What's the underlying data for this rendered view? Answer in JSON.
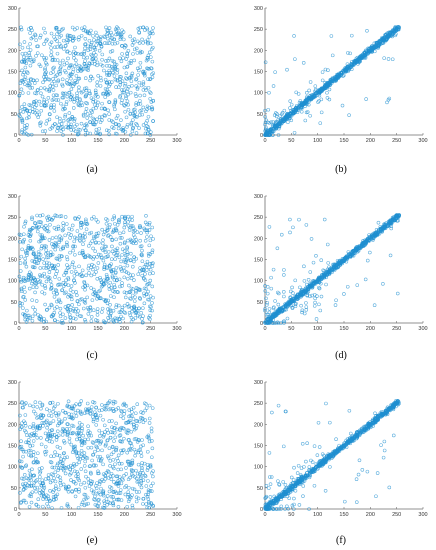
{
  "chart_data": [
    {
      "type": "scatter",
      "id": "a",
      "caption": "(a)",
      "pattern": "uniform",
      "xlim": [
        0,
        300
      ],
      "ylim": [
        0,
        300
      ],
      "x_ticks": [
        0,
        50,
        100,
        150,
        200,
        250,
        300
      ],
      "y_ticks": [
        0,
        50,
        100,
        150,
        200,
        250,
        300
      ],
      "x_range": [
        0,
        255
      ],
      "y_range": [
        0,
        255
      ],
      "n_points": 900,
      "seed": 11,
      "color": "#1f8fd0"
    },
    {
      "type": "scatter",
      "id": "b",
      "caption": "(b)",
      "pattern": "diagonal",
      "xlim": [
        0,
        300
      ],
      "ylim": [
        0,
        300
      ],
      "x_ticks": [
        0,
        50,
        100,
        150,
        200,
        250,
        300
      ],
      "y_ticks": [
        0,
        50,
        100,
        150,
        200,
        250,
        300
      ],
      "x_range": [
        0,
        255
      ],
      "y_range": [
        0,
        255
      ],
      "n_points": 900,
      "seed": 23,
      "color": "#1f8fd0"
    },
    {
      "type": "scatter",
      "id": "c",
      "caption": "(c)",
      "pattern": "uniform",
      "xlim": [
        0,
        300
      ],
      "ylim": [
        0,
        300
      ],
      "x_ticks": [
        0,
        50,
        100,
        150,
        200,
        250,
        300
      ],
      "y_ticks": [
        0,
        50,
        100,
        150,
        200,
        250,
        300
      ],
      "x_range": [
        0,
        255
      ],
      "y_range": [
        0,
        255
      ],
      "n_points": 900,
      "seed": 37,
      "color": "#1f8fd0"
    },
    {
      "type": "scatter",
      "id": "d",
      "caption": "(d)",
      "pattern": "diagonal",
      "xlim": [
        0,
        300
      ],
      "ylim": [
        0,
        300
      ],
      "x_ticks": [
        0,
        50,
        100,
        150,
        200,
        250,
        300
      ],
      "y_ticks": [
        0,
        50,
        100,
        150,
        200,
        250,
        300
      ],
      "x_range": [
        0,
        255
      ],
      "y_range": [
        0,
        255
      ],
      "n_points": 900,
      "seed": 41,
      "color": "#1f8fd0"
    },
    {
      "type": "scatter",
      "id": "e",
      "caption": "(e)",
      "pattern": "uniform",
      "xlim": [
        0,
        300
      ],
      "ylim": [
        0,
        300
      ],
      "x_ticks": [
        0,
        50,
        100,
        150,
        200,
        250,
        300
      ],
      "y_ticks": [
        0,
        50,
        100,
        150,
        200,
        250,
        300
      ],
      "x_range": [
        0,
        255
      ],
      "y_range": [
        0,
        255
      ],
      "n_points": 900,
      "seed": 53,
      "color": "#1f8fd0"
    },
    {
      "type": "scatter",
      "id": "f",
      "caption": "(f)",
      "pattern": "diagonal",
      "xlim": [
        0,
        300
      ],
      "ylim": [
        0,
        300
      ],
      "x_ticks": [
        0,
        50,
        100,
        150,
        200,
        250,
        300
      ],
      "y_ticks": [
        0,
        50,
        100,
        150,
        200,
        250,
        300
      ],
      "x_range": [
        0,
        255
      ],
      "y_range": [
        0,
        255
      ],
      "n_points": 900,
      "seed": 67,
      "color": "#1f8fd0"
    }
  ]
}
